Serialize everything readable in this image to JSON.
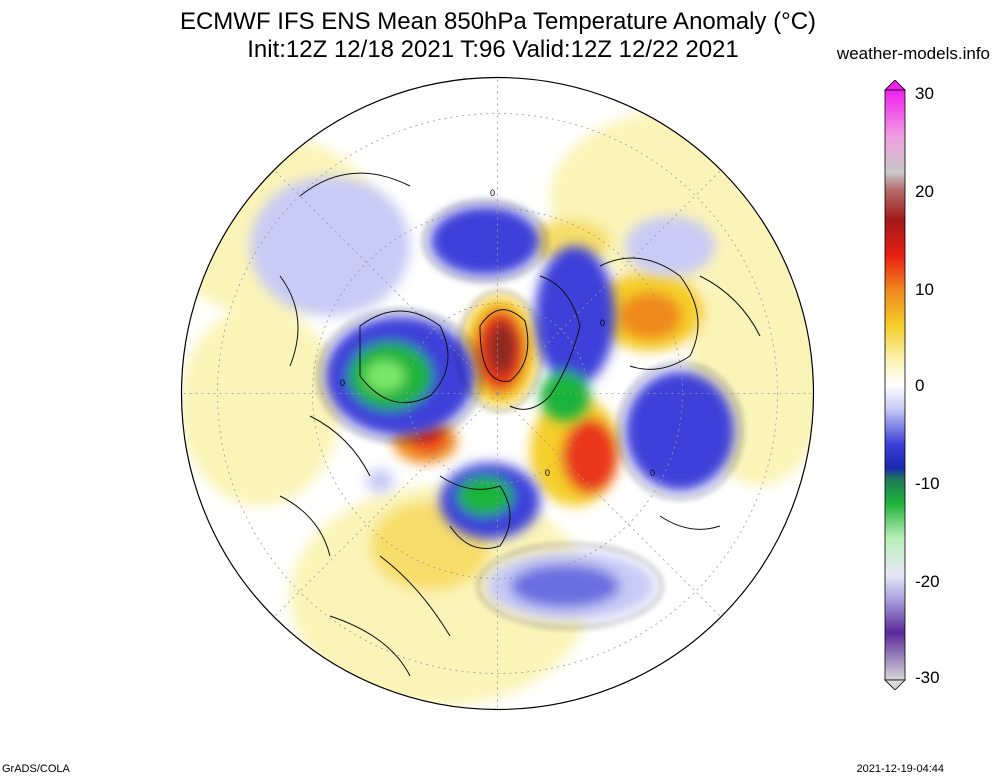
{
  "title_line1": "ECMWF IFS ENS Mean 850hPa Temperature Anomaly (°C)",
  "title_line2": "Init:12Z 12/18 2021  T:96 Valid:12Z 12/22 2021",
  "credit": "weather-models.info",
  "footer_left": "GrADS/COLA",
  "footer_right": "2021-12-19-04:44",
  "colorbar": {
    "ticks": [
      "30",
      "20",
      "10",
      "0",
      "-10",
      "-20",
      "-30"
    ],
    "range": [
      -30,
      30
    ]
  },
  "map": {
    "projection": "polar stereographic (north)",
    "contours": [
      "0"
    ]
  },
  "colors": {
    "warm_light": "#fbf4b8",
    "warm_mid": "#f5cf2a",
    "warm_strong": "#e9381f",
    "cold_light": "#c8cbf5",
    "cold_mid": "#3d3fd9",
    "cold_strong": "#1fb33a"
  }
}
